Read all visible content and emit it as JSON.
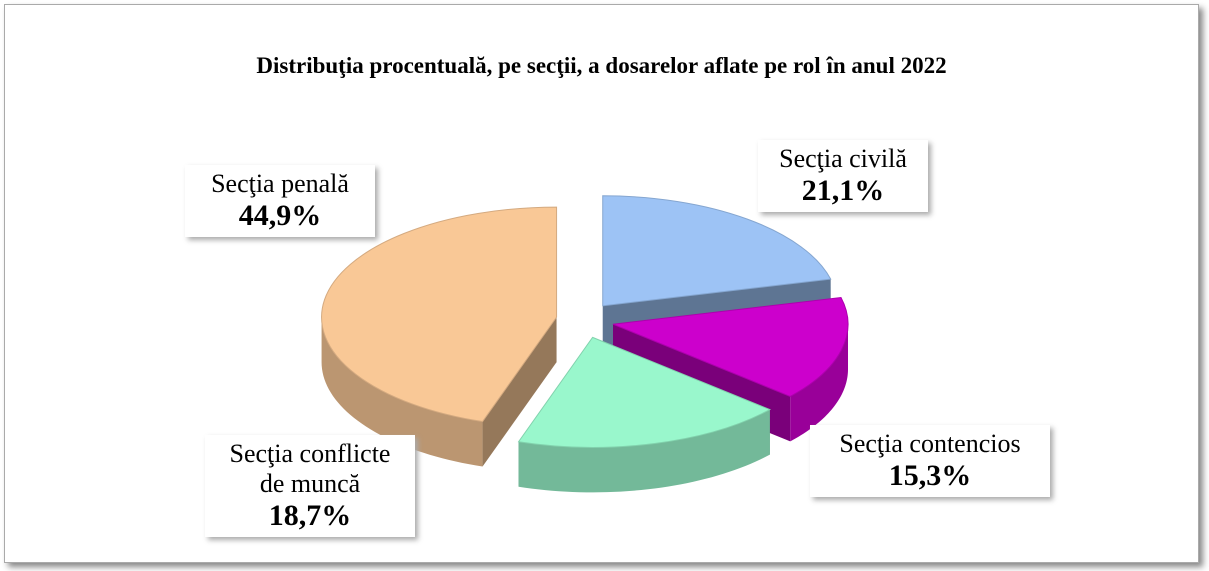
{
  "chart_data": {
    "type": "pie",
    "title": "Distribuţia procentuală, pe secţii, a dosarelor aflate pe rol în anul 2022",
    "categories": [
      "Secţia civilă",
      "Secţia contencios",
      "Secţia conflicte de muncă",
      "Secţia penală"
    ],
    "values": [
      21.1,
      15.3,
      18.7,
      44.9
    ],
    "value_labels": [
      "21,1%",
      "15,3%",
      "18,7%",
      "44,9%"
    ],
    "colors": [
      "#9dc3f5",
      "#cc00cc",
      "#99f7cc",
      "#f9c896"
    ]
  }
}
